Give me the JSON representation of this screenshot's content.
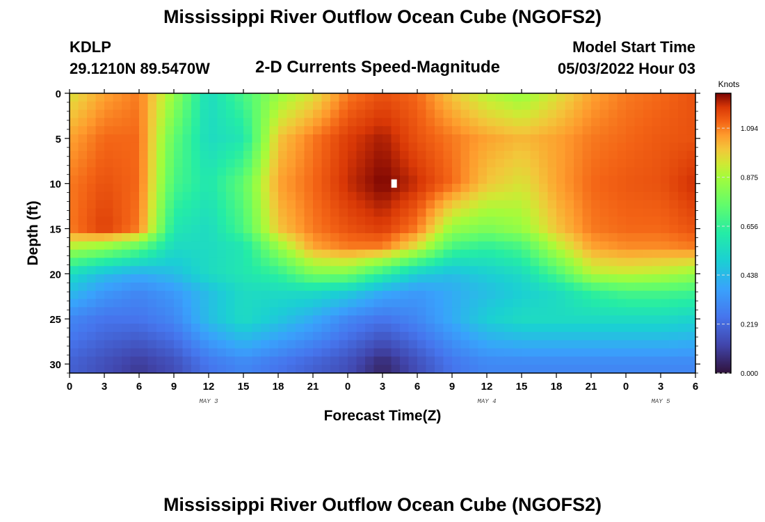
{
  "header": {
    "title": "Mississippi River Outflow Ocean Cube (NGOFS2)",
    "station_id": "KDLP",
    "coords": "29.1210N  89.5470W",
    "subtitle": "2-D Currents Speed-Magnitude",
    "model_start_label": "Model Start Time",
    "model_start_value": "05/03/2022 Hour 03"
  },
  "footer": {
    "title": "Mississippi River Outflow Ocean Cube (NGOFS2)"
  },
  "chart_data": {
    "type": "heatmap",
    "title": "2-D Currents Speed-Magnitude",
    "xlabel": "Forecast Time(Z)",
    "ylabel": "Depth (ft)",
    "x_tick_labels": [
      "0",
      "3",
      "6",
      "9",
      "12",
      "15",
      "18",
      "21",
      "0",
      "3",
      "6",
      "9",
      "12",
      "15",
      "18",
      "21",
      "0",
      "3",
      "6"
    ],
    "x_range_hours": [
      0,
      54
    ],
    "date_labels": [
      {
        "label": "MAY 3",
        "hour": 12
      },
      {
        "label": "MAY 4",
        "hour": 36
      },
      {
        "label": "MAY 5",
        "hour": 51
      }
    ],
    "y_ticks": [
      0,
      5,
      10,
      15,
      20,
      25,
      30
    ],
    "y_range": [
      0,
      31
    ],
    "y_inverted": true,
    "colorbar": {
      "unit_label": "Knots",
      "ticks": [
        "1.094",
        "0.875",
        "0.656",
        "0.438",
        "0.219",
        "0.000"
      ],
      "range": [
        0.0,
        1.25
      ],
      "colormap": "turbo"
    },
    "x_hours": [
      0,
      3,
      6,
      9,
      12,
      15,
      18,
      21,
      24,
      27,
      30,
      33,
      36,
      39,
      42,
      45,
      48,
      51,
      54
    ],
    "depths": [
      0,
      5,
      10,
      15,
      17,
      20,
      22,
      25,
      30
    ],
    "values_knots": [
      [
        0.95,
        1.05,
        1.1,
        0.85,
        0.55,
        0.7,
        0.85,
        0.95,
        1.1,
        1.15,
        1.12,
        1.0,
        0.9,
        0.85,
        0.95,
        1.05,
        1.1,
        1.12,
        1.15
      ],
      [
        1.05,
        1.12,
        1.12,
        0.75,
        0.55,
        0.6,
        1.0,
        1.1,
        1.18,
        1.22,
        1.15,
        1.1,
        1.05,
        1.02,
        1.05,
        1.1,
        1.12,
        1.14,
        1.15
      ],
      [
        1.1,
        1.15,
        1.12,
        0.7,
        0.6,
        0.75,
        1.05,
        1.12,
        1.2,
        1.25,
        1.2,
        1.12,
        1.0,
        0.95,
        1.05,
        1.12,
        1.14,
        1.15,
        1.2
      ],
      [
        1.1,
        1.18,
        1.1,
        0.6,
        0.55,
        0.7,
        1.0,
        1.1,
        1.15,
        1.18,
        1.1,
        0.85,
        0.8,
        0.85,
        1.0,
        1.1,
        1.12,
        1.12,
        1.15
      ],
      [
        0.9,
        0.85,
        0.75,
        0.55,
        0.55,
        0.6,
        0.85,
        1.05,
        1.1,
        1.1,
        0.95,
        0.7,
        0.65,
        0.7,
        0.9,
        1.05,
        1.08,
        1.08,
        1.1
      ],
      [
        0.55,
        0.45,
        0.4,
        0.45,
        0.55,
        0.6,
        0.65,
        0.8,
        0.8,
        0.65,
        0.5,
        0.45,
        0.5,
        0.55,
        0.7,
        0.9,
        0.92,
        0.9,
        0.85
      ],
      [
        0.45,
        0.35,
        0.3,
        0.35,
        0.45,
        0.55,
        0.55,
        0.55,
        0.5,
        0.4,
        0.35,
        0.4,
        0.45,
        0.5,
        0.55,
        0.65,
        0.7,
        0.7,
        0.68
      ],
      [
        0.3,
        0.25,
        0.25,
        0.3,
        0.45,
        0.55,
        0.48,
        0.4,
        0.3,
        0.25,
        0.3,
        0.4,
        0.5,
        0.55,
        0.55,
        0.55,
        0.55,
        0.55,
        0.52
      ],
      [
        0.2,
        0.15,
        0.1,
        0.15,
        0.25,
        0.3,
        0.25,
        0.2,
        0.15,
        0.05,
        0.15,
        0.25,
        0.3,
        0.3,
        0.3,
        0.3,
        0.3,
        0.3,
        0.3
      ]
    ],
    "marker": {
      "hour": 28,
      "depth": 10
    }
  }
}
